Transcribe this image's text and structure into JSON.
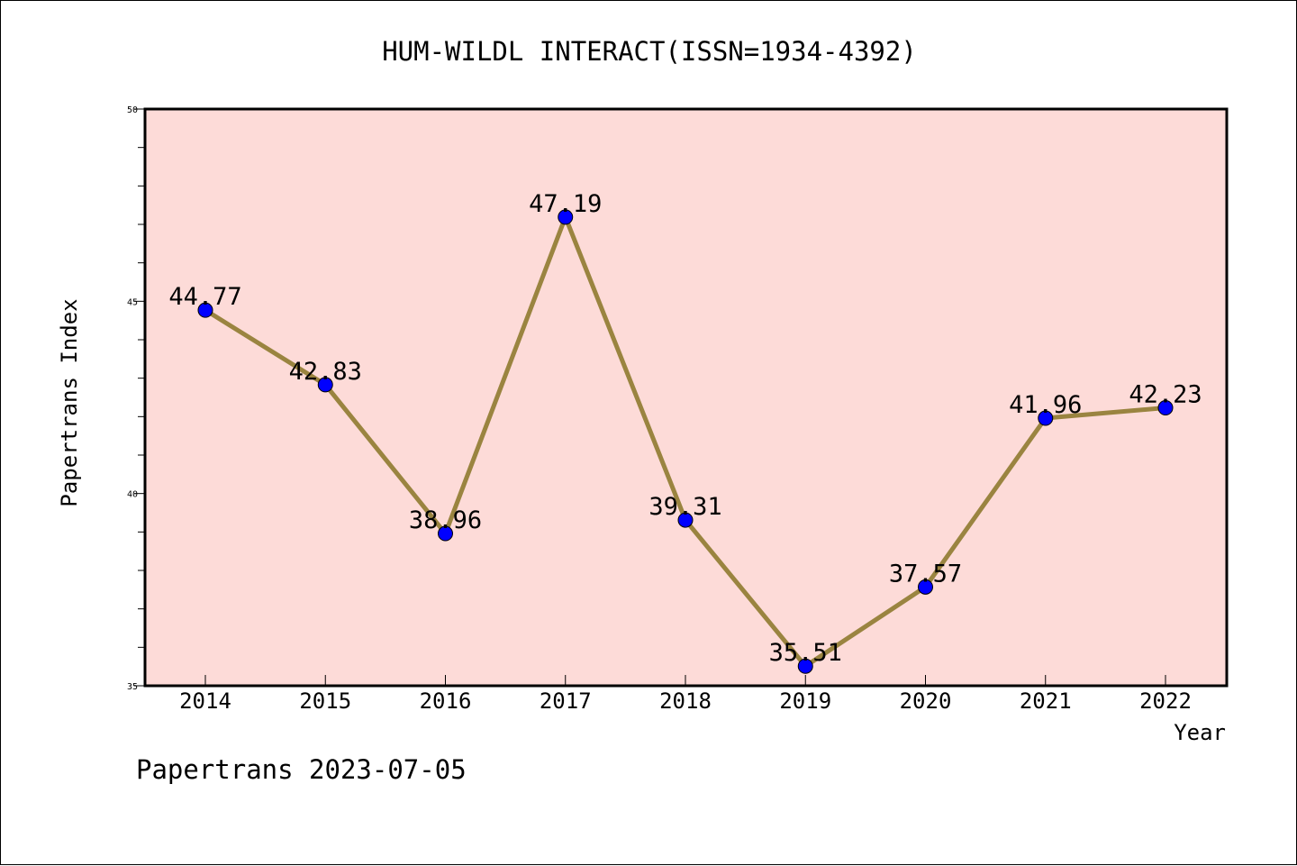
{
  "chart_data": {
    "type": "line",
    "title": "HUM-WILDL INTERACT(ISSN=1934-4392)",
    "xlabel": "Year",
    "ylabel": "Papertrans Index",
    "categories": [
      "2014",
      "2015",
      "2016",
      "2017",
      "2018",
      "2019",
      "2020",
      "2021",
      "2022"
    ],
    "series": [
      {
        "values": [
          44.77,
          42.83,
          38.96,
          47.19,
          39.31,
          35.51,
          37.57,
          41.96,
          42.23
        ],
        "data_labels": [
          "44.77",
          "42.83",
          "38.96",
          "47.19",
          "39.31",
          "35.51",
          "37.57",
          "41.96",
          "42.23"
        ]
      }
    ],
    "ylim": [
      35,
      50
    ],
    "yticks": [
      35,
      40,
      45,
      50
    ],
    "ytick_labels": [
      "35",
      "40",
      "45",
      "50"
    ],
    "grid": false,
    "legend": "none",
    "colors": {
      "plot_background": "#fddbd8",
      "line": "#9a8440",
      "marker": "#0000ff"
    }
  },
  "footer": {
    "note": "Papertrans 2023-07-05"
  }
}
